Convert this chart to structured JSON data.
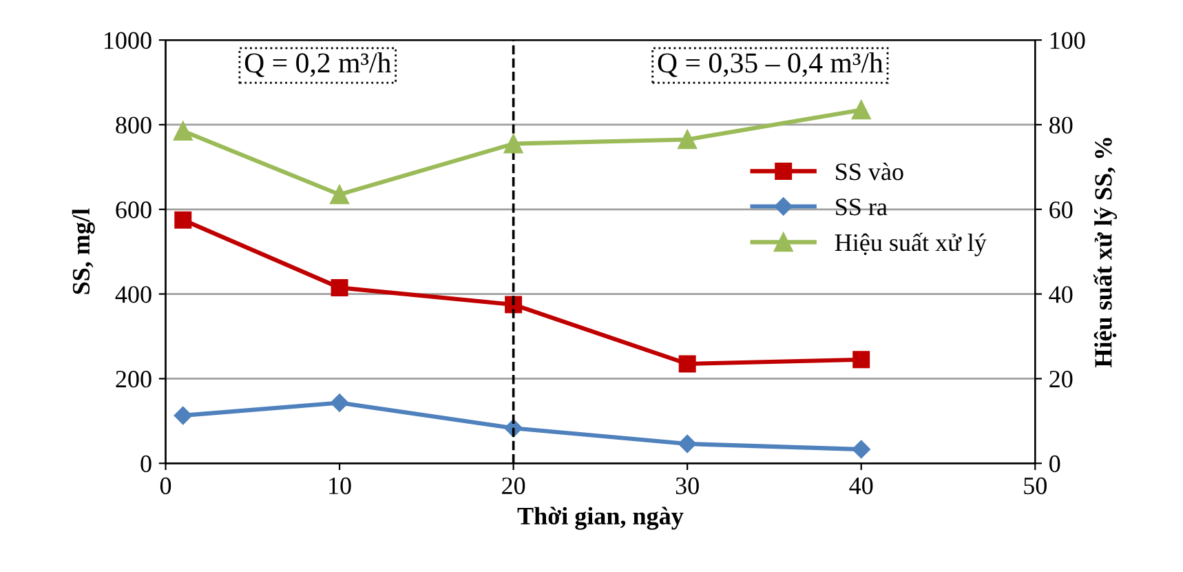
{
  "chart_data": {
    "type": "line",
    "xlabel": "Thời gian, ngày",
    "ylabel": "SS, mg/l",
    "y2label": "Hiệu suất xử lý SS, %",
    "x": [
      1,
      10,
      20,
      30,
      40
    ],
    "series": [
      {
        "name": "SS vào",
        "color": "#c00000",
        "marker": "square",
        "values": [
          575,
          415,
          375,
          235,
          245
        ]
      },
      {
        "name": "SS ra",
        "color": "#4f81bd",
        "marker": "diamond",
        "values": [
          113,
          143,
          83,
          46,
          33
        ]
      },
      {
        "name": "Hiệu suất xử lý",
        "color": "#9bbb59",
        "marker": "triangle",
        "axis": "y2",
        "values": [
          78.5,
          63.5,
          75.5,
          76.5,
          83.5
        ]
      }
    ],
    "xlim": [
      0,
      50
    ],
    "xticks": [
      0,
      10,
      20,
      30,
      40,
      50
    ],
    "ylim": [
      0,
      1000
    ],
    "yticks": [
      0,
      200,
      400,
      600,
      800,
      1000
    ],
    "y2lim": [
      0,
      100
    ],
    "y2ticks": [
      0,
      20,
      40,
      60,
      80,
      100
    ],
    "ref_lines": [
      {
        "axis": "x",
        "value": 20,
        "color": "#000000",
        "line_style": "dashed"
      }
    ],
    "annotations": [
      "Q = 0,2 m³/h",
      "Q = 0,35 – 0,4 m³/h"
    ],
    "grid": "y",
    "legend": "right",
    "line_style": "solid"
  }
}
